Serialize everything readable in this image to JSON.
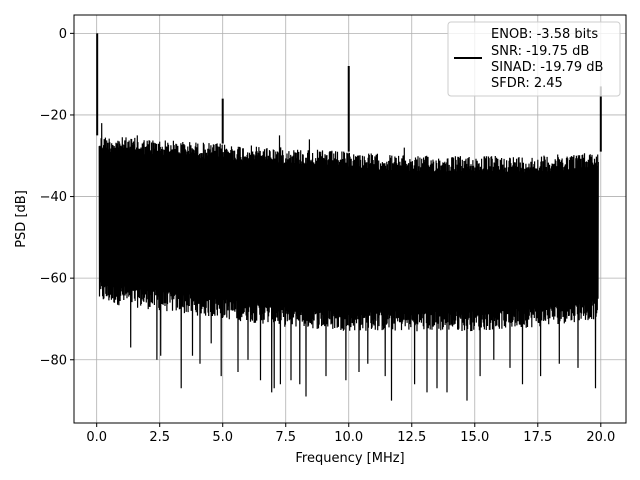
{
  "chart_data": {
    "type": "line",
    "title": "",
    "xlabel": "Frequency [MHz]",
    "ylabel": "PSD [dB]",
    "xlim": [
      -0.9,
      21.0
    ],
    "ylim": [
      -95.5,
      4.5
    ],
    "xticks": [
      0.0,
      2.5,
      5.0,
      7.5,
      10.0,
      12.5,
      15.0,
      17.5,
      20.0
    ],
    "xtick_labels": [
      "0.0",
      "2.5",
      "5.0",
      "7.5",
      "10.0",
      "12.5",
      "15.0",
      "17.5",
      "20.0"
    ],
    "yticks": [
      0,
      -20,
      -40,
      -60,
      -80
    ],
    "ytick_labels": [
      "0",
      "−20",
      "−40",
      "−60",
      "−80"
    ],
    "grid": true,
    "legend_position": "top-right",
    "legend_lines": [
      "ENOB: -3.58 bits",
      "SNR: -19.75 dB",
      "SINAD: -19.79 dB",
      "SFDR: 2.45"
    ],
    "series": [
      {
        "color": "#000000",
        "noise_envelope": {
          "x": [
            0.1,
            2.5,
            5.0,
            7.5,
            10.0,
            12.5,
            15.0,
            17.5,
            19.9
          ],
          "upper": [
            -25,
            -26,
            -27,
            -28,
            -29,
            -30,
            -30,
            -30,
            -29
          ],
          "lower": [
            -66,
            -68,
            -70,
            -72,
            -73,
            -73,
            -73,
            -72,
            -70
          ]
        },
        "floor_dips": [
          {
            "x": 1.35,
            "y": -77
          },
          {
            "x": 2.4,
            "y": -80
          },
          {
            "x": 2.55,
            "y": -79
          },
          {
            "x": 3.35,
            "y": -87
          },
          {
            "x": 3.8,
            "y": -79
          },
          {
            "x": 4.1,
            "y": -81
          },
          {
            "x": 4.55,
            "y": -76
          },
          {
            "x": 4.95,
            "y": -84
          },
          {
            "x": 5.6,
            "y": -83
          },
          {
            "x": 6.0,
            "y": -80
          },
          {
            "x": 6.5,
            "y": -85
          },
          {
            "x": 6.95,
            "y": -88
          },
          {
            "x": 7.05,
            "y": -87
          },
          {
            "x": 7.3,
            "y": -86
          },
          {
            "x": 7.7,
            "y": -85
          },
          {
            "x": 8.05,
            "y": -86
          },
          {
            "x": 8.3,
            "y": -89
          },
          {
            "x": 9.1,
            "y": -84
          },
          {
            "x": 9.9,
            "y": -85
          },
          {
            "x": 10.4,
            "y": -83
          },
          {
            "x": 10.75,
            "y": -81
          },
          {
            "x": 11.45,
            "y": -84
          },
          {
            "x": 11.7,
            "y": -90
          },
          {
            "x": 12.6,
            "y": -86
          },
          {
            "x": 13.1,
            "y": -88
          },
          {
            "x": 13.5,
            "y": -87
          },
          {
            "x": 13.9,
            "y": -88
          },
          {
            "x": 14.7,
            "y": -90
          },
          {
            "x": 15.2,
            "y": -84
          },
          {
            "x": 15.75,
            "y": -80
          },
          {
            "x": 16.4,
            "y": -82
          },
          {
            "x": 16.9,
            "y": -86
          },
          {
            "x": 17.6,
            "y": -84
          },
          {
            "x": 18.35,
            "y": -81
          },
          {
            "x": 19.1,
            "y": -82
          },
          {
            "x": 19.8,
            "y": -87
          }
        ],
        "floor_peaks": [
          {
            "x": 0.2,
            "y": -22
          },
          {
            "x": 1.6,
            "y": -25
          },
          {
            "x": 7.25,
            "y": -25
          },
          {
            "x": 8.45,
            "y": -26
          },
          {
            "x": 12.2,
            "y": -28
          }
        ],
        "spurs": [
          {
            "x": 0.02,
            "y": 0.0
          },
          {
            "x": 5.0,
            "y": -16
          },
          {
            "x": 10.0,
            "y": -8
          },
          {
            "x": 20.0,
            "y": -13
          }
        ]
      }
    ]
  }
}
